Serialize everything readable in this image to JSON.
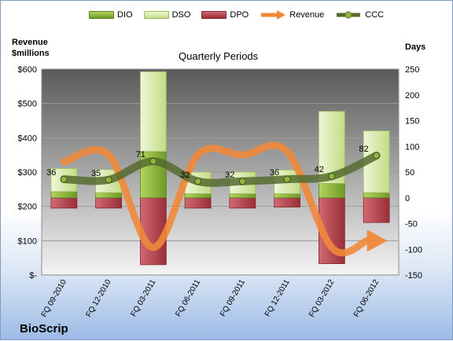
{
  "company": "BioScrip",
  "colors": {
    "dio": "#8fb83a",
    "dso": "#d4e8a0",
    "dpo": "#b5434d",
    "revenue": "#f0883a",
    "ccc": "#556b2f"
  },
  "chart_data": {
    "type": "bar",
    "title": "Quarterly Periods",
    "y_left_label": "Revenue\n$millions",
    "y_right_label": "Days",
    "y_left_lim": [
      0,
      600
    ],
    "y_left_ticks": [
      "$-",
      "$100",
      "$200",
      "$300",
      "$400",
      "$500",
      "$600"
    ],
    "y_right_lim": [
      -150,
      250
    ],
    "y_right_ticks": [
      "-150",
      "-100",
      "-50",
      "0",
      "50",
      "100",
      "150",
      "200",
      "250"
    ],
    "grid": true,
    "legend_position": "top",
    "categories": [
      "FQ 09-2010",
      "FQ 12-2010",
      "FQ 03-2011",
      "FQ 06-2011",
      "FQ 09-2011",
      "FQ 12-2011",
      "FQ 03-2012",
      "FQ 06-2012"
    ],
    "series": [
      {
        "name": "DIO",
        "values": [
          12,
          10,
          90,
          8,
          8,
          8,
          28,
          10
        ]
      },
      {
        "name": "DSO",
        "values": [
          45,
          45,
          155,
          42,
          42,
          46,
          140,
          120
        ]
      },
      {
        "name": "DPO",
        "values": [
          -20,
          -20,
          -130,
          -20,
          -20,
          -18,
          -128,
          -48
        ]
      },
      {
        "name": "Revenue",
        "values": [
          330,
          350,
          80,
          350,
          350,
          360,
          80,
          100
        ]
      },
      {
        "name": "CCC",
        "values": [
          36,
          35,
          71,
          32,
          32,
          36,
          42,
          82
        ]
      }
    ],
    "ccc_labels": [
      "36",
      "35",
      "71",
      "32",
      "32",
      "36",
      "42",
      "82"
    ]
  }
}
